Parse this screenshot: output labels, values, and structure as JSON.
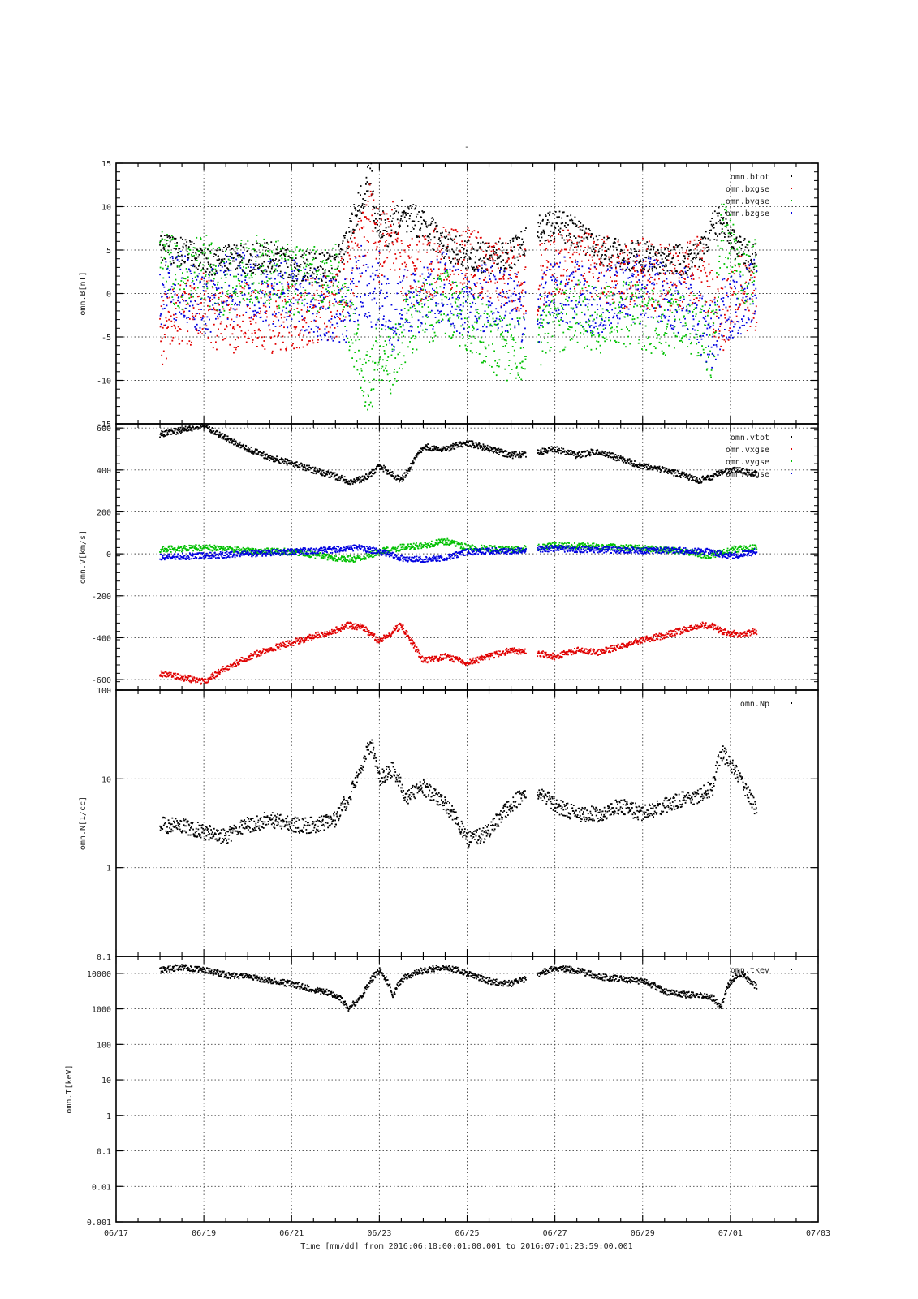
{
  "figure": {
    "title": "-",
    "xlabel": "Time [mm/dd]  from 2016:06:18:00:01:00.001  to  2016:07:01:23:59:00.001",
    "x_ticks": [
      "06/17",
      "06/19",
      "06/21",
      "06/23",
      "06/25",
      "06/27",
      "06/29",
      "07/01",
      "07/03"
    ]
  },
  "chart_data": [
    {
      "type": "scatter",
      "ylabel": "omn.B[nT]",
      "ylim": [
        -15,
        15
      ],
      "yscale": "linear",
      "yticks": [
        15,
        10,
        5,
        0,
        -5,
        -10,
        -15
      ],
      "xlim_days": [
        0,
        16
      ],
      "grid": true,
      "legend_position": "top-right",
      "series": [
        {
          "name": "omn.btot",
          "color": "#000000",
          "x": [
            1.0,
            1.5,
            2.0,
            2.5,
            3.0,
            3.5,
            4.0,
            4.5,
            5.0,
            5.3,
            5.6,
            5.8,
            5.9,
            6.2,
            6.5,
            7.0,
            7.5,
            8.0,
            8.5,
            9.0,
            9.5,
            10.0,
            10.5,
            11.0,
            11.5,
            12.0,
            12.5,
            13.0,
            13.3,
            13.6,
            13.8,
            14.2,
            14.6
          ],
          "y": [
            5,
            4.8,
            4,
            3.8,
            4,
            4.2,
            3.2,
            3,
            2.8,
            7,
            11,
            14,
            9,
            7,
            9,
            8,
            5.5,
            4.5,
            4,
            4.5,
            7,
            8,
            7,
            5,
            4.5,
            4.2,
            4,
            3.8,
            4.5,
            7.5,
            8.5,
            5,
            3.8
          ]
        },
        {
          "name": "omn.bxgse",
          "color": "#e00000",
          "x": [
            1.0,
            1.3,
            1.7,
            2.0,
            2.5,
            3.0,
            3.5,
            4.0,
            4.5,
            5.0,
            5.3,
            5.6,
            5.8,
            6.0,
            6.3,
            6.6,
            7.0,
            7.5,
            8.0,
            8.5,
            9.0,
            9.5,
            10.0,
            10.5,
            11.0,
            11.5,
            12.0,
            12.5,
            13.0,
            13.3,
            13.6,
            13.8,
            14.2,
            14.6
          ],
          "y": [
            -4.5,
            -3,
            -2,
            -1.5,
            -4,
            -2,
            -3,
            -2.5,
            -2,
            -1.5,
            2,
            6,
            10,
            5,
            7,
            2,
            3,
            4,
            4,
            3,
            2,
            1,
            3,
            4,
            3,
            2,
            2.5,
            1.5,
            2,
            3,
            -1,
            -3,
            1,
            -2
          ]
        },
        {
          "name": "omn.bygse",
          "color": "#00c000",
          "x": [
            1.0,
            1.5,
            2.0,
            2.5,
            3.0,
            3.5,
            4.0,
            4.5,
            5.0,
            5.3,
            5.6,
            5.8,
            6.0,
            6.3,
            6.6,
            7.0,
            7.5,
            8.0,
            8.5,
            9.0,
            9.5,
            10.0,
            10.5,
            11.0,
            11.5,
            12.0,
            12.5,
            13.0,
            13.3,
            13.6,
            13.8,
            14.2,
            14.6
          ],
          "y": [
            4,
            2,
            3,
            1,
            3,
            2.5,
            1.5,
            1.5,
            2.5,
            -3,
            -8,
            -11,
            -6,
            -8,
            -4,
            -2,
            -1,
            -3,
            -5,
            -7,
            -5,
            -3,
            -2,
            -3,
            -2.5,
            -3,
            -3.5,
            -2.5,
            -4,
            -6,
            8,
            2,
            3
          ]
        },
        {
          "name": "omn.bzgse",
          "color": "#0000e0",
          "x": [
            1.0,
            1.5,
            2.0,
            2.5,
            3.0,
            3.5,
            4.0,
            4.5,
            5.0,
            5.3,
            5.6,
            5.8,
            6.0,
            6.3,
            6.6,
            7.0,
            7.5,
            8.0,
            8.5,
            9.0,
            9.5,
            10.0,
            10.5,
            11.0,
            11.5,
            12.0,
            12.5,
            13.0,
            13.3,
            13.6,
            13.8,
            14.2,
            14.6
          ],
          "y": [
            0,
            1,
            -1,
            0.5,
            1,
            0,
            0,
            -1,
            -2,
            -2,
            2,
            -1,
            1,
            -3,
            -1,
            -1,
            1,
            -2,
            0,
            -1,
            -3,
            1,
            0,
            -1,
            0,
            0.5,
            0,
            -1,
            -3,
            -5,
            -2,
            -1,
            1
          ]
        }
      ]
    },
    {
      "type": "scatter",
      "ylabel": "omn.V[km/s]",
      "ylim": [
        -650,
        620
      ],
      "yscale": "linear",
      "yticks": [
        600,
        400,
        200,
        0,
        -200,
        -400,
        -600
      ],
      "xlim_days": [
        0,
        16
      ],
      "grid": true,
      "legend_position": "top-right",
      "series": [
        {
          "name": "omn.vtot",
          "color": "#000000",
          "x": [
            1.0,
            1.5,
            2.0,
            2.5,
            3.0,
            3.5,
            4.0,
            4.5,
            5.0,
            5.3,
            5.6,
            5.8,
            6.0,
            6.5,
            7.0,
            7.5,
            8.0,
            8.5,
            9.0,
            9.5,
            10.0,
            10.5,
            11.0,
            11.5,
            12.0,
            12.5,
            13.0,
            13.3,
            13.6,
            13.8,
            14.2,
            14.6
          ],
          "y": [
            570,
            590,
            615,
            550,
            500,
            460,
            430,
            400,
            370,
            345,
            355,
            380,
            420,
            350,
            510,
            500,
            530,
            500,
            470,
            480,
            500,
            470,
            490,
            450,
            420,
            400,
            370,
            350,
            370,
            390,
            400,
            380
          ]
        },
        {
          "name": "omn.vxgse",
          "color": "#e00000",
          "x": [
            1.0,
            1.5,
            2.0,
            2.5,
            3.0,
            3.5,
            4.0,
            4.5,
            5.0,
            5.3,
            5.6,
            5.8,
            6.0,
            6.5,
            7.0,
            7.5,
            8.0,
            8.5,
            9.0,
            9.5,
            10.0,
            10.5,
            11.0,
            11.5,
            12.0,
            12.5,
            13.0,
            13.3,
            13.6,
            13.8,
            14.2,
            14.6
          ],
          "y": [
            -570,
            -590,
            -610,
            -545,
            -495,
            -455,
            -425,
            -395,
            -365,
            -340,
            -350,
            -380,
            -420,
            -340,
            -510,
            -490,
            -520,
            -490,
            -460,
            -470,
            -490,
            -460,
            -470,
            -440,
            -410,
            -390,
            -360,
            -340,
            -345,
            -370,
            -385,
            -370
          ]
        },
        {
          "name": "omn.vygse",
          "color": "#00c000",
          "x": [
            1.0,
            2.0,
            3.0,
            4.0,
            5.0,
            5.5,
            6.0,
            6.5,
            7.0,
            7.5,
            8.0,
            9.0,
            10.0,
            11.0,
            12.0,
            13.0,
            13.5,
            14.0,
            14.6
          ],
          "y": [
            20,
            30,
            15,
            10,
            -20,
            -25,
            10,
            30,
            40,
            60,
            30,
            20,
            40,
            35,
            25,
            10,
            -10,
            20,
            30
          ]
        },
        {
          "name": "omn.vzgse",
          "color": "#0000e0",
          "x": [
            1.0,
            2.0,
            3.0,
            4.0,
            5.0,
            5.5,
            6.0,
            6.5,
            7.0,
            7.5,
            8.0,
            9.0,
            10.0,
            11.0,
            12.0,
            13.0,
            13.5,
            14.0,
            14.6
          ],
          "y": [
            -15,
            -10,
            0,
            10,
            20,
            30,
            10,
            -20,
            -30,
            -20,
            10,
            15,
            25,
            20,
            15,
            15,
            10,
            -10,
            10
          ]
        }
      ]
    },
    {
      "type": "scatter",
      "ylabel": "omn.N[1/cc]",
      "ylim": [
        0.1,
        100
      ],
      "yscale": "log",
      "yticks": [
        "100",
        "10",
        "1",
        "0.1"
      ],
      "xlim_days": [
        0,
        16
      ],
      "grid": true,
      "legend_position": "top-right",
      "series": [
        {
          "name": "omn.Np",
          "color": "#000000",
          "x": [
            1.0,
            1.5,
            2.0,
            2.5,
            3.0,
            3.5,
            4.0,
            4.5,
            5.0,
            5.3,
            5.6,
            5.8,
            6.0,
            6.3,
            6.6,
            7.0,
            7.5,
            8.0,
            8.5,
            9.0,
            9.5,
            10.0,
            10.5,
            11.0,
            11.5,
            12.0,
            12.5,
            13.0,
            13.3,
            13.6,
            13.8,
            14.2,
            14.6
          ],
          "y": [
            3,
            3,
            2.5,
            2.2,
            3,
            3.5,
            3,
            3,
            3.5,
            6,
            12,
            25,
            10,
            13,
            6,
            8,
            5,
            2,
            2.5,
            5,
            8,
            5,
            4,
            4,
            5,
            4,
            5,
            6,
            6.5,
            8,
            20,
            10,
            4
          ]
        }
      ]
    },
    {
      "type": "scatter",
      "ylabel": "omn.T[keV]",
      "ylim": [
        0.001,
        30000
      ],
      "yscale": "log",
      "yticks": [
        "10000",
        "1000",
        "100",
        "10",
        "1",
        "0.1",
        "0.01",
        "0.001"
      ],
      "xlim_days": [
        0,
        16
      ],
      "grid": true,
      "legend_position": "top-right",
      "series": [
        {
          "name": "omn.tkev",
          "color": "#000000",
          "x": [
            1.0,
            1.5,
            2.0,
            2.5,
            3.0,
            3.5,
            4.0,
            4.5,
            5.0,
            5.3,
            5.6,
            5.8,
            6.0,
            6.3,
            6.6,
            7.0,
            7.5,
            8.0,
            8.5,
            9.0,
            9.5,
            10.0,
            10.5,
            11.0,
            11.5,
            12.0,
            12.5,
            13.0,
            13.3,
            13.6,
            13.8,
            14.2,
            14.6
          ],
          "y": [
            12000,
            15000,
            12000,
            9000,
            8000,
            6000,
            5000,
            3500,
            2500,
            1000,
            2000,
            6000,
            12000,
            2000,
            8000,
            12000,
            15000,
            10000,
            6000,
            5000,
            8000,
            14000,
            12000,
            8000,
            7000,
            6000,
            3000,
            2500,
            2500,
            2000,
            1000,
            10000,
            4000
          ]
        }
      ]
    }
  ]
}
